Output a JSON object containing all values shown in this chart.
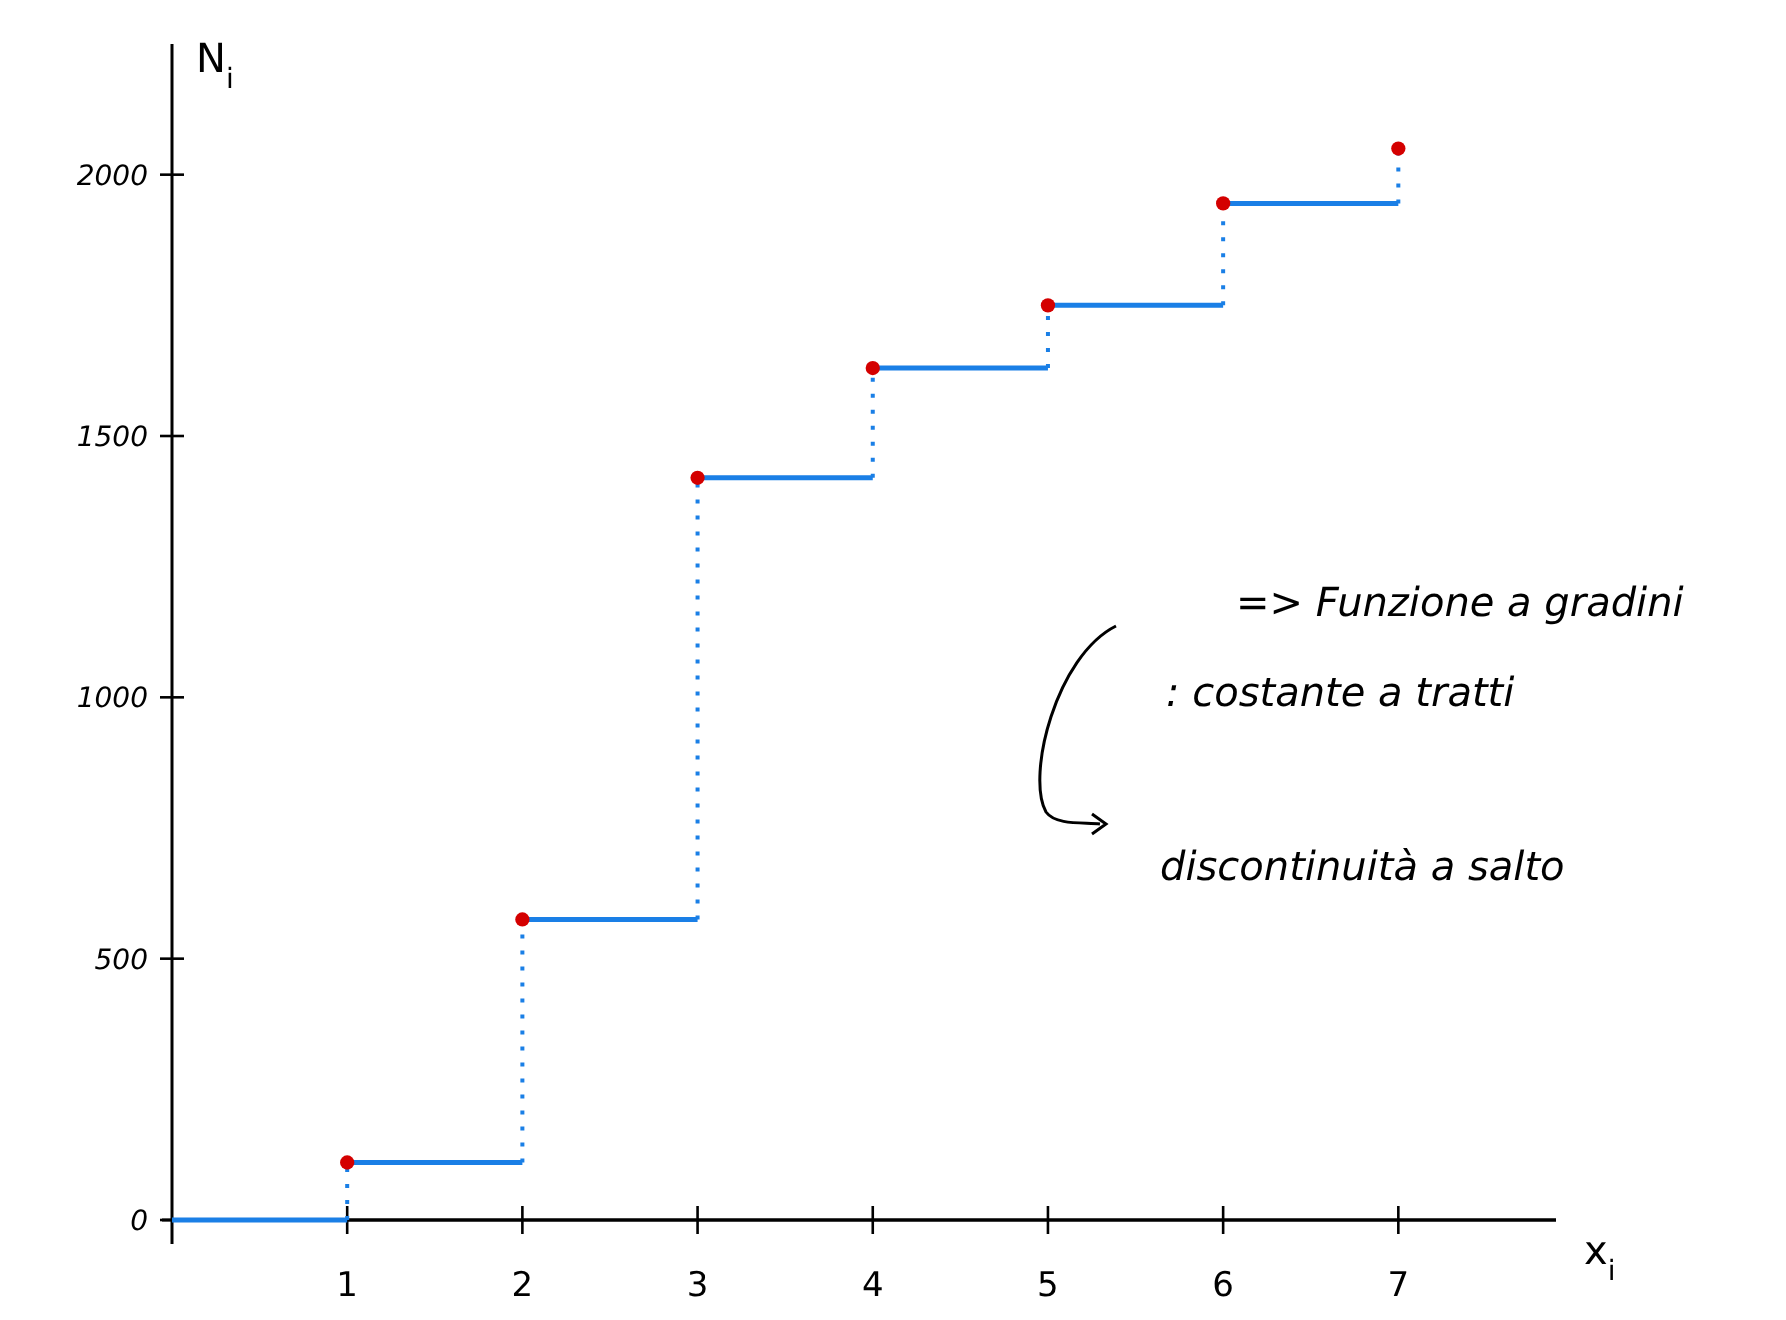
{
  "chart_data": {
    "type": "step",
    "xlabel": "x$_{i}$",
    "ylabel": "N$_{i}$",
    "xlim": [
      0,
      7.9
    ],
    "xticks": [
      1,
      2,
      3,
      4,
      5,
      6,
      7
    ],
    "ylim": [
      0,
      2250
    ],
    "yticks": [
      0,
      500,
      1000,
      1500,
      2000
    ],
    "grid": false,
    "series": [
      {
        "color": "#1a7fe6",
        "x": [
          0,
          1,
          2,
          3,
          4,
          5,
          6,
          7
        ],
        "values": [
          0,
          110,
          575,
          1420,
          1630,
          1750,
          1945,
          2050
        ],
        "marker": "none"
      },
      {
        "type": "scatter",
        "color": "#d40000",
        "x": [
          1,
          2,
          3,
          4,
          5,
          6,
          7
        ],
        "values": [
          110,
          575,
          1420,
          1630,
          1750,
          1945,
          2050
        ],
        "marker": "circle"
      }
    ],
    "annotations": [
      "=> Funzione a gradini",
      ": costante a tratti",
      "discontinuità a salto"
    ]
  }
}
